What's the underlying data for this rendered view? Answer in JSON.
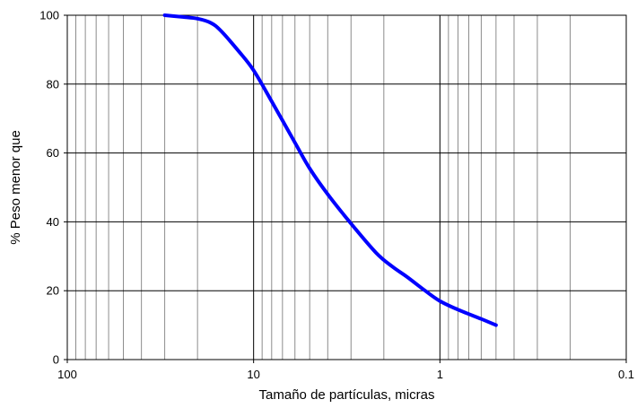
{
  "chart_data": {
    "type": "line",
    "title": "",
    "xlabel": "Tamaño de partículas,  micras",
    "ylabel": "% Peso menor que",
    "x_scale": "log",
    "x_reversed": true,
    "xlim": [
      100,
      0.1
    ],
    "ylim": [
      0,
      100
    ],
    "xticks": [
      {
        "value": 100,
        "label": "100"
      },
      {
        "value": 10,
        "label": "10"
      },
      {
        "value": 1,
        "label": "1"
      },
      {
        "value": 0.1,
        "label": "0.1"
      }
    ],
    "yticks": [
      {
        "value": 0,
        "label": "0"
      },
      {
        "value": 20,
        "label": "20"
      },
      {
        "value": 40,
        "label": "40"
      },
      {
        "value": 60,
        "label": "60"
      },
      {
        "value": 80,
        "label": "80"
      },
      {
        "value": 100,
        "label": "100"
      }
    ],
    "grid": true,
    "legend": "none",
    "series": [
      {
        "color": "#0000ff",
        "x": [
          30,
          24,
          20,
          17,
          15,
          12,
          10,
          8,
          6,
          5,
          4,
          3,
          2.2,
          1.8,
          1.5,
          1.2,
          1,
          0.8,
          0.6,
          0.5
        ],
        "y": [
          100,
          99.5,
          99,
          97.8,
          95.5,
          89.5,
          84,
          75,
          63,
          55.5,
          48,
          39.5,
          31,
          27,
          24,
          20,
          17,
          14.5,
          11.8,
          10
        ]
      }
    ]
  }
}
